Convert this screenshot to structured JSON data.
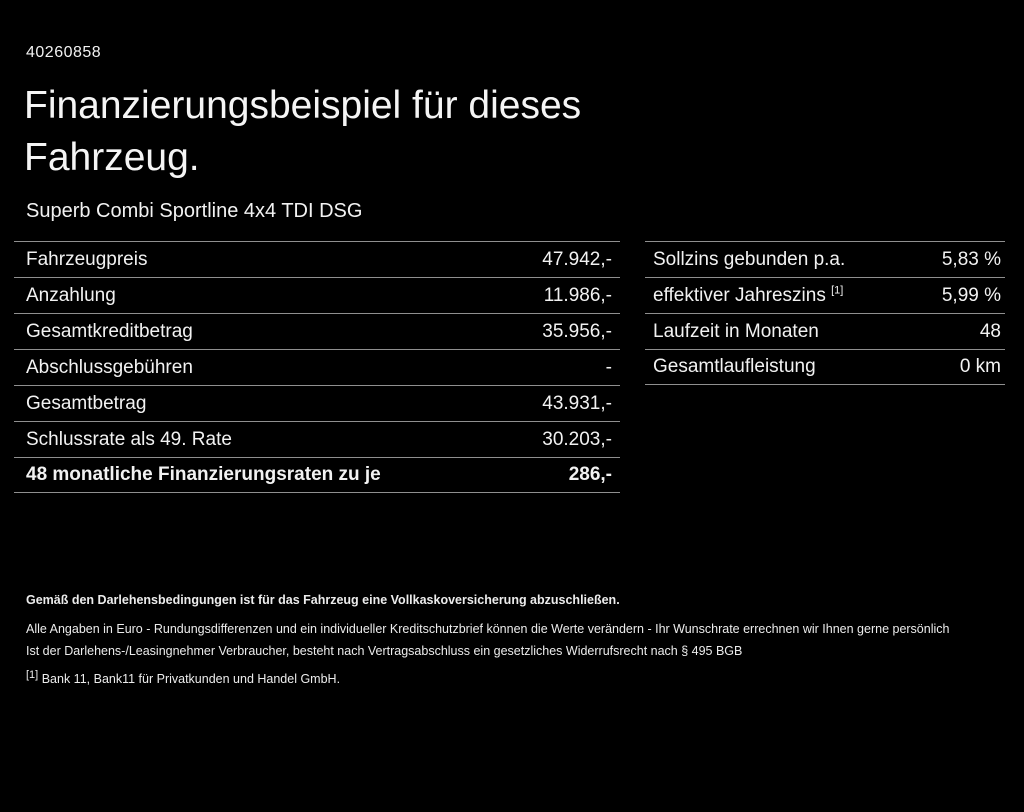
{
  "meta": {
    "id": "40260858"
  },
  "title": {
    "line1": "Finanzierungsbeispiel für dieses",
    "line2": "Fahrzeug."
  },
  "vehicle": "Superb Combi Sportline 4x4 TDI DSG",
  "left_table": {
    "rows": [
      {
        "label": "Fahrzeugpreis",
        "value": "47.942,-"
      },
      {
        "label": "Anzahlung",
        "value": "11.986,-"
      },
      {
        "label": "Gesamtkreditbetrag",
        "value": "35.956,-"
      },
      {
        "label": "Abschlussgebühren",
        "value": "-"
      },
      {
        "label": "Gesamtbetrag",
        "value": "43.931,-"
      },
      {
        "label": "Schlussrate als 49. Rate",
        "value": "30.203,-"
      },
      {
        "label": "48 monatliche Finanzierungsraten zu je",
        "value": "286,-"
      }
    ]
  },
  "right_table": {
    "rows": [
      {
        "label": "Sollzins gebunden p.a.",
        "sup": "",
        "value": "5,83 %"
      },
      {
        "label": "effektiver Jahreszins",
        "sup": "[1]",
        "value": "5,99 %"
      },
      {
        "label": "Laufzeit in Monaten",
        "sup": "",
        "value": "48"
      },
      {
        "label": "Gesamtlaufleistung",
        "sup": "",
        "value": "0 km"
      }
    ]
  },
  "footnotes": {
    "line1": "Gemäß den Darlehensbedingungen ist für das Fahrzeug eine Vollkaskoversicherung abzuschließen.",
    "line2": "Alle Angaben in Euro - Rundungsdifferenzen und ein individueller Kreditschutzbrief können die Werte verändern - Ihr Wunschrate errechnen wir Ihnen gerne persönlich",
    "line3": "Ist der Darlehens-/Leasingnehmer Verbraucher, besteht nach Vertragsabschluss ein gesetzliches Widerrufsrecht nach § 495 BGB",
    "line4_sup": "[1]",
    "line4": "Bank 11, Bank11 für Privatkunden und Handel GmbH."
  },
  "colors": {
    "background": "#000000",
    "text": "#f2f2f2",
    "divider": "#8f8f8f"
  }
}
